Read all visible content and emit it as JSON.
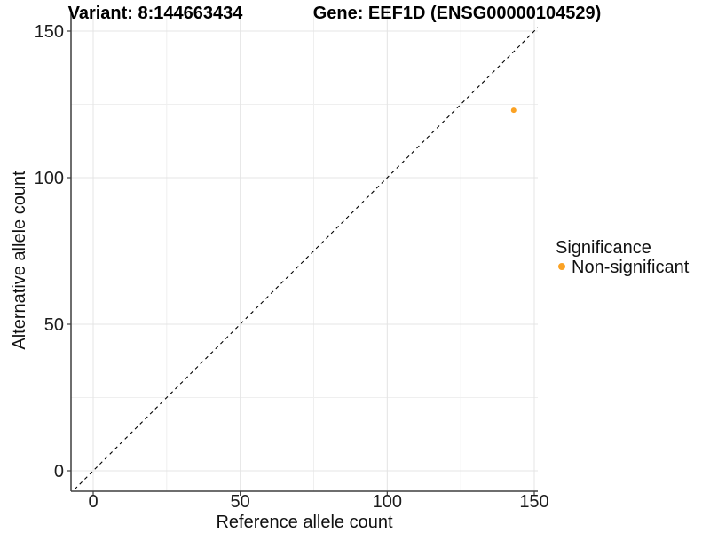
{
  "header": {
    "title_left": "Variant: 8:144663434",
    "title_right": "Gene: EEF1D (ENSG00000104529)"
  },
  "axes": {
    "x_label": "Reference allele count",
    "y_label": "Alternative allele count"
  },
  "legend": {
    "title": "Significance",
    "items": [
      {
        "label": "Non-significant",
        "color": "#FBA224"
      }
    ]
  },
  "colors": {
    "background": "#ffffff",
    "grid_major": "#e4e4e4",
    "grid_minor": "#efefef",
    "axis_line": "#3f3f3f",
    "reference_line": "#000000",
    "point": "#FBA224"
  },
  "chart_data": {
    "type": "scatter",
    "title": "Variant: 8:144663434 — Gene: EEF1D (ENSG00000104529)",
    "xlabel": "Reference allele count",
    "ylabel": "Alternative allele count",
    "xlim": [
      0,
      150
    ],
    "ylim": [
      0,
      150
    ],
    "x_ticks": [
      0,
      50,
      100,
      150
    ],
    "y_ticks": [
      0,
      50,
      100,
      150
    ],
    "x_minor_ticks": [
      25,
      75,
      125
    ],
    "y_minor_ticks": [
      25,
      75,
      125
    ],
    "grid": true,
    "legend_position": "right",
    "reference_line": {
      "style": "dashed",
      "slope": 1,
      "intercept": 0
    },
    "series": [
      {
        "name": "Non-significant",
        "color": "#FBA224",
        "points": [
          {
            "x": 143,
            "y": 123
          }
        ]
      }
    ]
  }
}
